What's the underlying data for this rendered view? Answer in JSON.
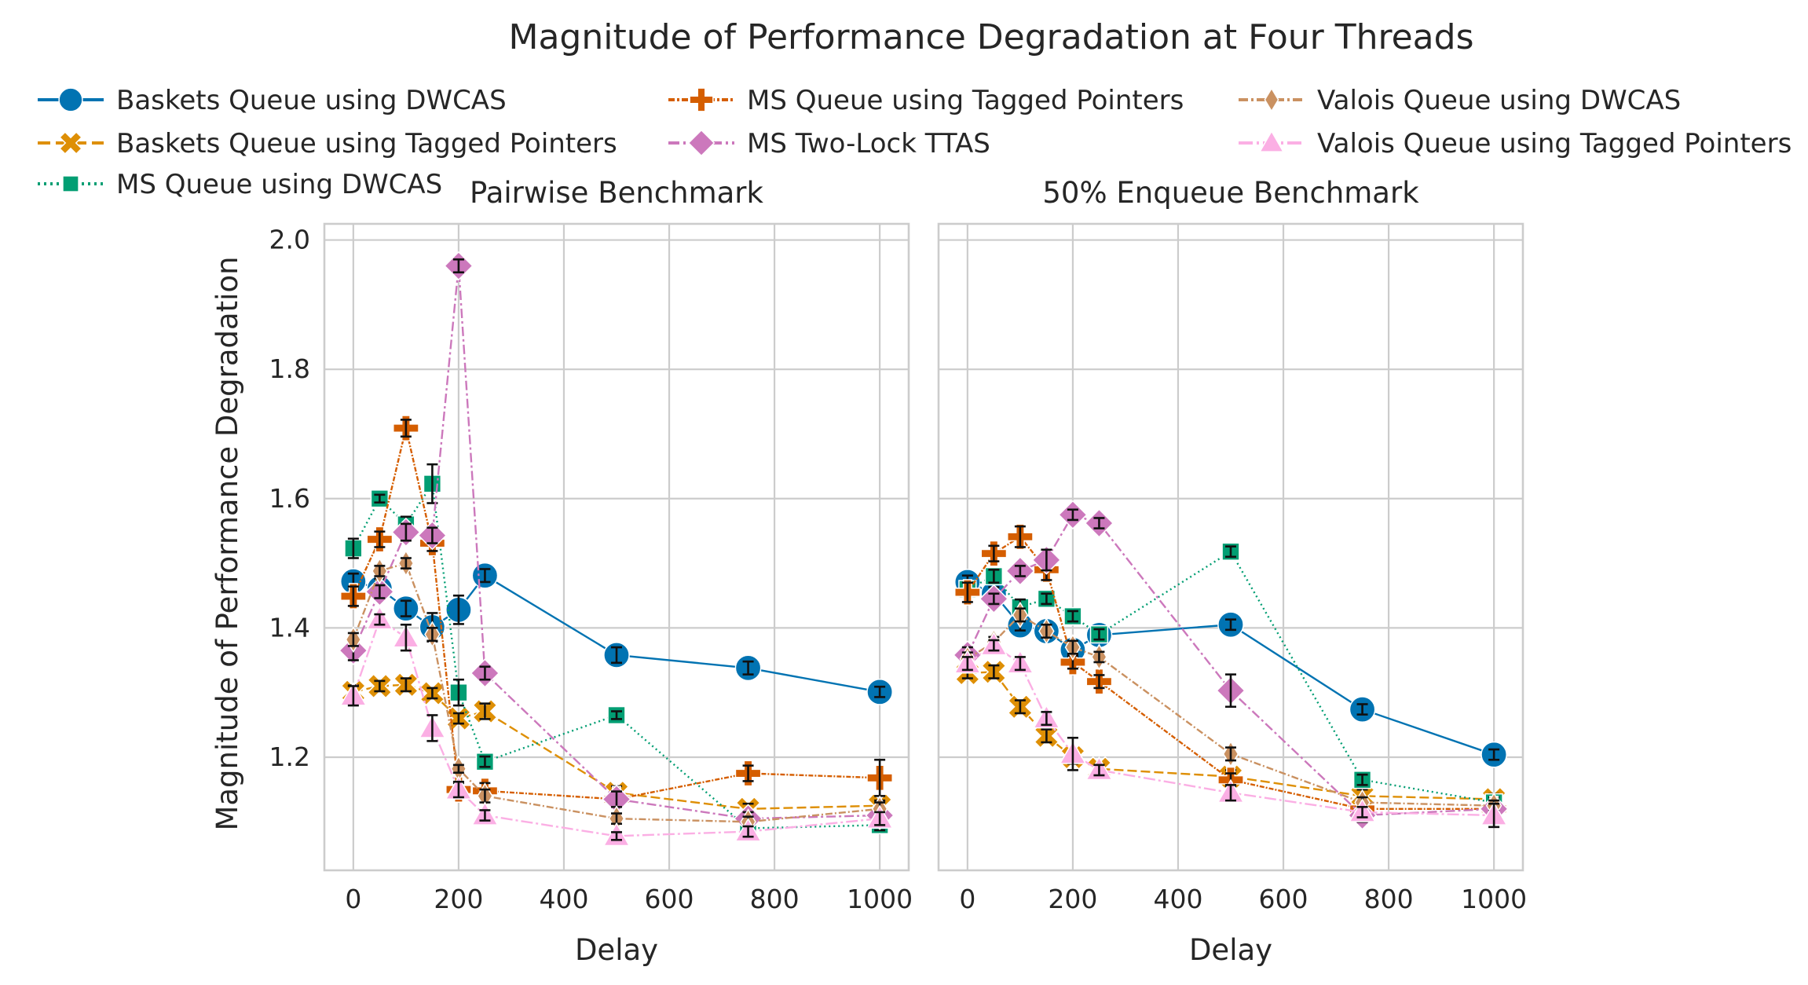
{
  "figure": {
    "title": "Magnitude of Performance Degradation at Four Threads",
    "ylabel": "Magnitude of Performance Degradation",
    "xlabel": "Delay"
  },
  "series_styles": [
    {
      "name": "Baskets Queue using DWCAS",
      "color": "#0173b2",
      "marker": "circle",
      "dash": "",
      "legend_dash": ""
    },
    {
      "name": "Baskets Queue using Tagged Pointers",
      "color": "#de8f05",
      "marker": "x",
      "dash": "12 5",
      "legend_dash": "16 7"
    },
    {
      "name": "MS Queue using DWCAS",
      "color": "#029e73",
      "marker": "square",
      "dash": "2 4",
      "legend_dash": "3 5"
    },
    {
      "name": "MS Queue using Tagged Pointers",
      "color": "#d55e00",
      "marker": "plus",
      "dash": "6 2 2 2",
      "legend_dash": "8 3 3 3"
    },
    {
      "name": "MS Two-Lock TTAS",
      "color": "#cc78bc",
      "marker": "diamond",
      "dash": "12 4 3 4",
      "legend_dash": "14 5 3 5"
    },
    {
      "name": "Valois Queue using DWCAS",
      "color": "#ca9161",
      "marker": "thin-diamond",
      "dash": "9 3 2 3",
      "legend_dash": "12 4 3 4"
    },
    {
      "name": "Valois Queue using Tagged Pointers",
      "color": "#fbafe4",
      "marker": "triangle",
      "dash": "15 4 3 4",
      "legend_dash": "18 5 3 5"
    }
  ],
  "chart_data": [
    {
      "type": "line",
      "title": "Pairwise Benchmark",
      "xlabel": "Delay",
      "ylabel": "Magnitude of Performance Degradation",
      "x": [
        0,
        50,
        100,
        150,
        200,
        250,
        500,
        750,
        1000
      ],
      "xlim": [
        -55,
        1055
      ],
      "ylim": [
        1.025,
        2.025
      ],
      "xticks": [
        0,
        200,
        400,
        600,
        800,
        1000
      ],
      "yticks": [
        1.2,
        1.4,
        1.6,
        1.8,
        2.0
      ],
      "ytick_labels": [
        "1.2",
        "1.4",
        "1.6",
        "1.8",
        "2.0"
      ],
      "grid": true,
      "legend": "top, above both panels",
      "series": [
        {
          "name": "Baskets Queue using DWCAS",
          "values": [
            1.472,
            1.461,
            1.43,
            1.401,
            1.428,
            1.481,
            1.358,
            1.338,
            1.301
          ],
          "err": [
            0.012,
            0.015,
            0.012,
            0.022,
            0.022,
            0.01,
            0.012,
            0.01,
            0.008
          ]
        },
        {
          "name": "Baskets Queue using Tagged Pointers",
          "values": [
            1.301,
            1.31,
            1.312,
            1.299,
            1.26,
            1.271,
            1.145,
            1.12,
            1.125
          ],
          "err": [
            0.01,
            0.008,
            0.01,
            0.008,
            0.008,
            0.012,
            0.01,
            0.008,
            0.008
          ]
        },
        {
          "name": "MS Queue using DWCAS",
          "values": [
            1.523,
            1.6,
            1.56,
            1.623,
            1.3,
            1.193,
            1.265,
            1.09,
            1.095
          ],
          "err": [
            0.015,
            0.006,
            0.012,
            0.03,
            0.02,
            0.008,
            0.006,
            0.01,
            0.008
          ]
        },
        {
          "name": "MS Queue using Tagged Pointers",
          "values": [
            1.449,
            1.537,
            1.709,
            1.531,
            1.15,
            1.148,
            1.135,
            1.175,
            1.168
          ],
          "err": [
            0.015,
            0.012,
            0.013,
            0.012,
            0.01,
            0.012,
            0.01,
            0.012,
            0.028
          ]
        },
        {
          "name": "MS Two-Lock TTAS",
          "values": [
            1.365,
            1.456,
            1.548,
            1.543,
            1.96,
            1.33,
            1.135,
            1.105,
            1.11
          ],
          "err": [
            0.015,
            0.01,
            0.013,
            0.012,
            0.01,
            0.01,
            0.012,
            0.01,
            0.012
          ]
        },
        {
          "name": "Valois Queue using DWCAS",
          "values": [
            1.382,
            1.488,
            1.5,
            1.39,
            1.182,
            1.14,
            1.105,
            1.1,
            1.12
          ],
          "err": [
            0.01,
            0.008,
            0.008,
            0.01,
            0.006,
            0.01,
            0.008,
            0.008,
            0.01
          ]
        },
        {
          "name": "Valois Queue using Tagged Pointers",
          "values": [
            1.295,
            1.413,
            1.385,
            1.245,
            1.15,
            1.11,
            1.078,
            1.085,
            1.105
          ],
          "err": [
            0.015,
            0.008,
            0.02,
            0.02,
            0.012,
            0.008,
            0.006,
            0.008,
            0.01
          ]
        }
      ]
    },
    {
      "type": "line",
      "title": "50% Enqueue Benchmark",
      "xlabel": "Delay",
      "x": [
        0,
        50,
        100,
        150,
        200,
        250,
        500,
        750,
        1000
      ],
      "xlim": [
        -55,
        1055
      ],
      "ylim": [
        1.025,
        2.025
      ],
      "xticks": [
        0,
        200,
        400,
        600,
        800,
        1000
      ],
      "yticks": [
        1.2,
        1.4,
        1.6,
        1.8,
        2.0
      ],
      "grid": true,
      "shared_y": true,
      "series": [
        {
          "name": "Baskets Queue using DWCAS",
          "values": [
            1.471,
            1.453,
            1.404,
            1.395,
            1.366,
            1.389,
            1.405,
            1.274,
            1.204
          ],
          "err": [
            0.01,
            0.01,
            0.008,
            0.01,
            0.01,
            0.008,
            0.008,
            0.008,
            0.008
          ]
        },
        {
          "name": "Baskets Queue using Tagged Pointers",
          "values": [
            1.33,
            1.332,
            1.278,
            1.233,
            1.2,
            1.182,
            1.17,
            1.14,
            1.135
          ],
          "err": [
            0.008,
            0.01,
            0.01,
            0.01,
            0.01,
            0.006,
            0.01,
            0.01,
            0.008
          ]
        },
        {
          "name": "MS Queue using DWCAS",
          "values": [
            1.46,
            1.48,
            1.432,
            1.445,
            1.418,
            1.39,
            1.518,
            1.165,
            1.13
          ],
          "err": [
            0.01,
            0.01,
            0.012,
            0.008,
            0.008,
            0.008,
            0.008,
            0.008,
            0.008
          ]
        },
        {
          "name": "MS Queue using Tagged Pointers",
          "values": [
            1.455,
            1.515,
            1.541,
            1.49,
            1.347,
            1.317,
            1.165,
            1.12,
            1.12
          ],
          "err": [
            0.015,
            0.012,
            0.016,
            0.016,
            0.01,
            0.01,
            0.01,
            0.01,
            0.01
          ]
        },
        {
          "name": "MS Two-Lock TTAS",
          "values": [
            1.358,
            1.445,
            1.488,
            1.505,
            1.575,
            1.562,
            1.303,
            1.11,
            1.12
          ],
          "err": [
            0.012,
            0.008,
            0.008,
            0.016,
            0.008,
            0.008,
            0.025,
            0.01,
            0.012
          ]
        },
        {
          "name": "Valois Queue using DWCAS",
          "values": [
            1.352,
            1.378,
            1.42,
            1.395,
            1.37,
            1.355,
            1.205,
            1.13,
            1.125
          ],
          "err": [
            0.01,
            0.008,
            0.01,
            0.01,
            0.01,
            0.008,
            0.01,
            0.008,
            0.008
          ]
        },
        {
          "name": "Valois Queue using Tagged Pointers",
          "values": [
            1.345,
            1.373,
            1.345,
            1.26,
            1.205,
            1.18,
            1.145,
            1.115,
            1.11
          ],
          "err": [
            0.01,
            0.008,
            0.01,
            0.01,
            0.025,
            0.008,
            0.012,
            0.008,
            0.018
          ]
        }
      ]
    }
  ]
}
